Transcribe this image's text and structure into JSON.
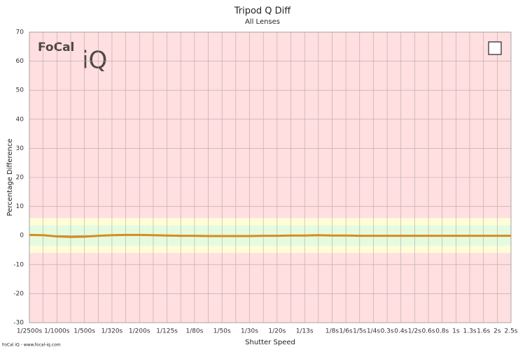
{
  "chart_data": {
    "type": "line",
    "title": "Tripod Q Diff",
    "subtitle": "All Lenses",
    "x_label": "Shutter Speed",
    "y_label": "Percentage Difference",
    "watermark": [
      "FoCal",
      "iQ"
    ],
    "footer": "FoCal iQ - www.focal-iq.com",
    "categories": [
      "1/2500s",
      null,
      "1/1000s",
      null,
      "1/500s",
      null,
      "1/320s",
      null,
      "1/200s",
      null,
      "1/125s",
      null,
      "1/80s",
      null,
      "1/50s",
      null,
      "1/30s",
      null,
      "1/20s",
      null,
      "1/13s",
      null,
      "1/8s",
      "1/6s",
      "1/5s",
      "1/4s",
      "0.3s",
      "0.4s",
      "1/2s",
      "0.6s",
      "0.8s",
      "1s",
      "1.3s",
      "1.6s",
      "2s",
      "2.5s"
    ],
    "series": [
      {
        "color": "#d98b1a",
        "values": [
          0.2,
          0.1,
          -0.3,
          -0.5,
          -0.4,
          -0.1,
          0.1,
          0.2,
          0.2,
          0.1,
          0,
          -0.1,
          -0.1,
          -0.2,
          -0.2,
          -0.2,
          -0.2,
          -0.1,
          -0.1,
          0,
          0,
          0.1,
          0,
          0,
          -0.1,
          -0.1,
          -0.1,
          -0.1,
          -0.1,
          -0.1,
          -0.1,
          -0.1,
          -0.1,
          -0.1,
          -0.1,
          -0.1
        ]
      }
    ],
    "ylim": [
      -30,
      70
    ],
    "yticks": [
      -30,
      -20,
      -10,
      0,
      10,
      20,
      30,
      40,
      50,
      60,
      70
    ],
    "grid": true,
    "background_color": "#ffdfe0",
    "bands": [
      {
        "from": -6,
        "to": 6,
        "color": "#fdfdd8"
      },
      {
        "from": -3.5,
        "to": 3.5,
        "color": "#e4fbe0"
      }
    ]
  }
}
